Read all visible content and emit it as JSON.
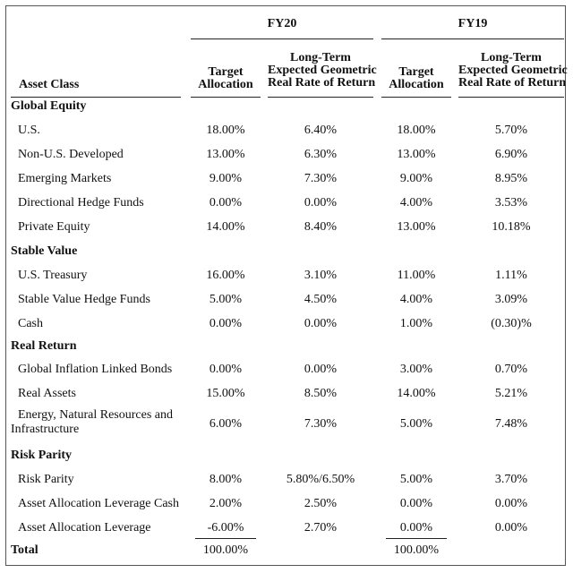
{
  "years": {
    "fy20": "FY20",
    "fy19": "FY19"
  },
  "headers": {
    "asset_class": "Asset Class",
    "target_line1": "Target",
    "target_line2": "Allocation",
    "ret_line1": "Long-Term",
    "ret_line2": "Expected Geometric",
    "ret_line3": "Real Rate of Return"
  },
  "categories": {
    "global_equity": "Global Equity",
    "stable_value": "Stable Value",
    "real_return": "Real Return",
    "risk_parity": "Risk Parity"
  },
  "rows": {
    "us": {
      "label": "U.S.",
      "v": [
        "18.00%",
        "6.40%",
        "18.00%",
        "5.70%"
      ]
    },
    "non_us": {
      "label": "Non-U.S. Developed",
      "v": [
        "13.00%",
        "6.30%",
        "13.00%",
        "6.90%"
      ]
    },
    "emerging": {
      "label": "Emerging Markets",
      "v": [
        "9.00%",
        "7.30%",
        "9.00%",
        "8.95%"
      ]
    },
    "directional": {
      "label": "Directional Hedge Funds",
      "v": [
        "0.00%",
        "0.00%",
        "4.00%",
        "3.53%"
      ]
    },
    "private_equity": {
      "label": "Private Equity",
      "v": [
        "14.00%",
        "8.40%",
        "13.00%",
        "10.18%"
      ]
    },
    "treasury": {
      "label": "U.S. Treasury",
      "v": [
        "16.00%",
        "3.10%",
        "11.00%",
        "1.11%"
      ]
    },
    "sv_hedge": {
      "label": "Stable Value Hedge Funds",
      "v": [
        "5.00%",
        "4.50%",
        "4.00%",
        "3.09%"
      ]
    },
    "cash": {
      "label": "Cash",
      "v": [
        "0.00%",
        "0.00%",
        "1.00%",
        "(0.30)%"
      ]
    },
    "inflation": {
      "label": "Global Inflation Linked Bonds",
      "v": [
        "0.00%",
        "0.00%",
        "3.00%",
        "0.70%"
      ]
    },
    "real_assets": {
      "label": "Real Assets",
      "v": [
        "15.00%",
        "8.50%",
        "14.00%",
        "5.21%"
      ]
    },
    "energy": {
      "label1": "Energy, Natural Resources and",
      "label2": "Infrastructure",
      "v": [
        "6.00%",
        "7.30%",
        "5.00%",
        "7.48%"
      ]
    },
    "risk_parity": {
      "label": "Risk Parity",
      "v": [
        "8.00%",
        "5.80%/6.50%",
        "5.00%",
        "3.70%"
      ]
    },
    "aa_lev_cash": {
      "label": "Asset Allocation Leverage Cash",
      "v": [
        "2.00%",
        "2.50%",
        "0.00%",
        "0.00%"
      ]
    },
    "aa_lev": {
      "label": "Asset Allocation Leverage",
      "v": [
        "-6.00%",
        "2.70%",
        "0.00%",
        "0.00%"
      ]
    }
  },
  "total": {
    "label": "Total",
    "fy20": "100.00%",
    "fy19": "100.00%"
  }
}
